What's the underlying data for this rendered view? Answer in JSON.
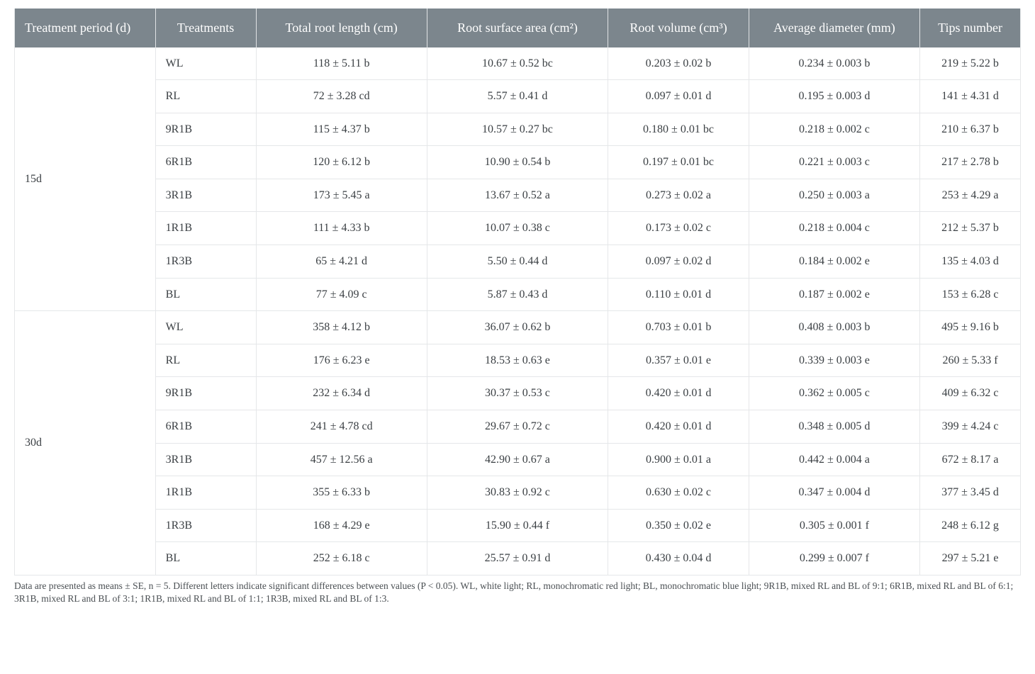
{
  "table": {
    "header_bg": "#7c868d",
    "header_fg": "#ffffff",
    "border_color": "#e5e7e9",
    "group_border_color": "#cfd3d6",
    "text_color": "#3a3f43",
    "font_family": "Times New Roman",
    "header_fontsize_pt": 13,
    "cell_fontsize_pt": 12,
    "columns": [
      {
        "key": "period",
        "label": "Treatment period (d)",
        "align": "left",
        "width_pct": 14
      },
      {
        "key": "treat",
        "label": "Treatments",
        "align": "left",
        "width_pct": 10
      },
      {
        "key": "trl",
        "label": "Total root length (cm)",
        "align": "center",
        "width_pct": 17
      },
      {
        "key": "rsa",
        "label": "Root surface area (cm²)",
        "align": "center",
        "width_pct": 18
      },
      {
        "key": "rv",
        "label": "Root volume (cm³)",
        "align": "center",
        "width_pct": 14
      },
      {
        "key": "ad",
        "label": "Average diameter (mm)",
        "align": "center",
        "width_pct": 17
      },
      {
        "key": "tips",
        "label": "Tips number",
        "align": "center",
        "width_pct": 10
      }
    ],
    "groups": [
      {
        "period": "15d",
        "rows": [
          {
            "treat": "WL",
            "trl": "118 ± 5.11 b",
            "rsa": "10.67 ± 0.52 bc",
            "rv": "0.203 ± 0.02 b",
            "ad": "0.234 ± 0.003 b",
            "tips": "219 ± 5.22 b"
          },
          {
            "treat": "RL",
            "trl": "72 ± 3.28 cd",
            "rsa": "5.57 ± 0.41 d",
            "rv": "0.097 ± 0.01 d",
            "ad": "0.195 ± 0.003 d",
            "tips": "141 ± 4.31 d"
          },
          {
            "treat": "9R1B",
            "trl": "115 ± 4.37 b",
            "rsa": "10.57 ± 0.27 bc",
            "rv": "0.180 ± 0.01 bc",
            "ad": "0.218 ± 0.002 c",
            "tips": "210 ± 6.37 b"
          },
          {
            "treat": "6R1B",
            "trl": "120 ± 6.12 b",
            "rsa": "10.90 ± 0.54 b",
            "rv": "0.197 ± 0.01 bc",
            "ad": "0.221 ± 0.003 c",
            "tips": "217 ± 2.78 b"
          },
          {
            "treat": "3R1B",
            "trl": "173 ± 5.45 a",
            "rsa": "13.67 ± 0.52 a",
            "rv": "0.273 ± 0.02 a",
            "ad": "0.250 ± 0.003 a",
            "tips": "253 ± 4.29 a"
          },
          {
            "treat": "1R1B",
            "trl": "111 ± 4.33 b",
            "rsa": "10.07 ± 0.38 c",
            "rv": "0.173 ± 0.02 c",
            "ad": "0.218 ± 0.004 c",
            "tips": "212 ± 5.37 b"
          },
          {
            "treat": "1R3B",
            "trl": "65 ± 4.21 d",
            "rsa": "5.50 ± 0.44 d",
            "rv": "0.097 ± 0.02 d",
            "ad": "0.184 ± 0.002 e",
            "tips": "135 ± 4.03 d"
          },
          {
            "treat": "BL",
            "trl": "77 ± 4.09 c",
            "rsa": "5.87 ± 0.43 d",
            "rv": "0.110 ± 0.01 d",
            "ad": "0.187 ± 0.002 e",
            "tips": "153 ± 6.28 c"
          }
        ]
      },
      {
        "period": "30d",
        "rows": [
          {
            "treat": "WL",
            "trl": "358 ± 4.12 b",
            "rsa": "36.07 ± 0.62 b",
            "rv": "0.703 ± 0.01 b",
            "ad": "0.408 ± 0.003 b",
            "tips": "495 ± 9.16 b"
          },
          {
            "treat": "RL",
            "trl": "176 ± 6.23 e",
            "rsa": "18.53 ± 0.63 e",
            "rv": "0.357 ± 0.01 e",
            "ad": "0.339 ± 0.003 e",
            "tips": "260 ± 5.33 f"
          },
          {
            "treat": "9R1B",
            "trl": "232 ± 6.34 d",
            "rsa": "30.37 ± 0.53 c",
            "rv": "0.420 ± 0.01 d",
            "ad": "0.362 ± 0.005 c",
            "tips": "409 ± 6.32 c"
          },
          {
            "treat": "6R1B",
            "trl": "241 ± 4.78 cd",
            "rsa": "29.67 ± 0.72 c",
            "rv": "0.420 ± 0.01 d",
            "ad": "0.348 ± 0.005 d",
            "tips": "399 ± 4.24 c"
          },
          {
            "treat": "3R1B",
            "trl": "457 ± 12.56 a",
            "rsa": "42.90 ± 0.67 a",
            "rv": "0.900 ± 0.01 a",
            "ad": "0.442 ± 0.004 a",
            "tips": "672 ± 8.17 a"
          },
          {
            "treat": "1R1B",
            "trl": "355 ± 6.33 b",
            "rsa": "30.83 ± 0.92 c",
            "rv": "0.630 ± 0.02 c",
            "ad": "0.347 ± 0.004 d",
            "tips": "377 ± 3.45 d"
          },
          {
            "treat": "1R3B",
            "trl": "168 ± 4.29 e",
            "rsa": "15.90 ± 0.44 f",
            "rv": "0.350 ± 0.02 e",
            "ad": "0.305 ± 0.001 f",
            "tips": "248 ± 6.12 g"
          },
          {
            "treat": "BL",
            "trl": "252 ± 6.18 c",
            "rsa": "25.57 ± 0.91 d",
            "rv": "0.430 ± 0.04 d",
            "ad": "0.299 ± 0.007 f",
            "tips": "297 ± 5.21 e"
          }
        ]
      }
    ]
  },
  "footnote": "Data are presented as means ± SE, n = 5. Different letters indicate significant differences between values (P < 0.05). WL, white light; RL, monochromatic red light; BL, monochromatic blue light; 9R1B, mixed RL and BL of 9:1; 6R1B, mixed RL and BL of 6:1; 3R1B, mixed RL and BL of 3:1; 1R1B, mixed RL and BL of 1:1; 1R3B, mixed RL and BL of 1:3.",
  "footnote_fontsize_pt": 10,
  "footnote_color": "#4a4f53"
}
